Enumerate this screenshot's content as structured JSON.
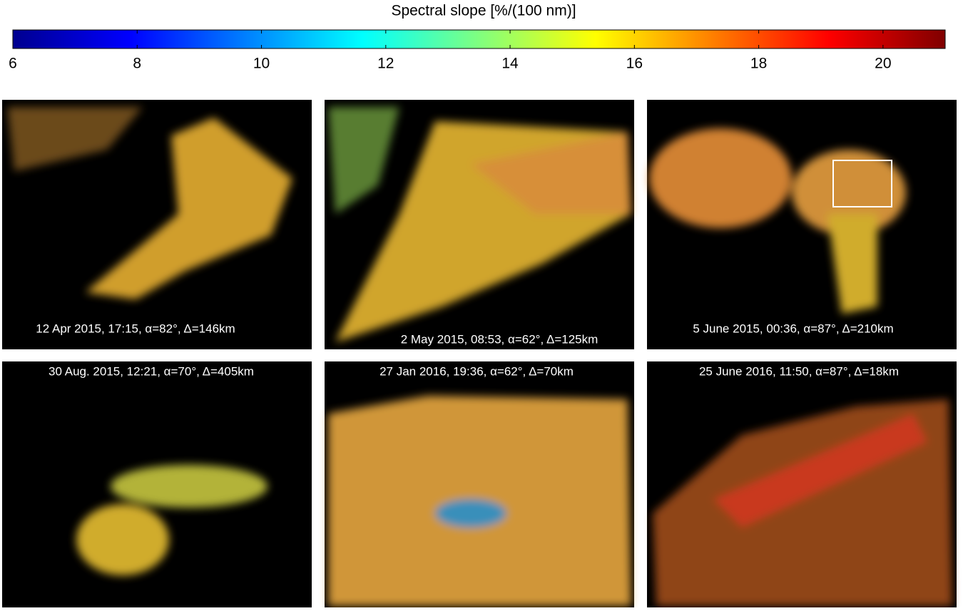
{
  "colorbar": {
    "label": "Spectral slope [%/(100 nm)]",
    "lim": [
      6,
      21
    ],
    "ticks": [
      6,
      8,
      10,
      12,
      14,
      16,
      18,
      20
    ],
    "colormap": "jet"
  },
  "panels": [
    {
      "caption": "12 Apr 2015, 17:15, α=82°, Δ=146km"
    },
    {
      "caption": "2 May 2015, 08:53, α=62°, Δ=125km"
    },
    {
      "caption": "5 June 2015, 00:36, α=87°, Δ=210km"
    },
    {
      "caption": "30 Aug. 2015, 12:21, α=70°, Δ=405km"
    },
    {
      "caption": "27 Jan 2016, 19:36, α=62°, Δ=70km"
    },
    {
      "caption": "25 June 2016, 11:50, α=87°, Δ=18km"
    }
  ]
}
